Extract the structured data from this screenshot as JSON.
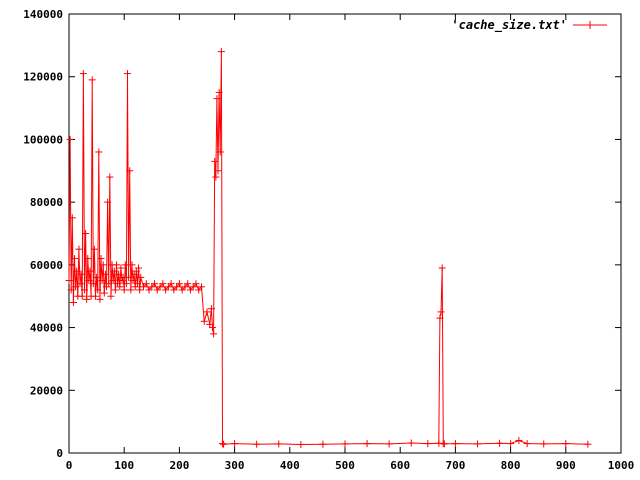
{
  "chart_data": {
    "type": "line",
    "title": "",
    "xlabel": "",
    "ylabel": "",
    "xlim": [
      0,
      1000
    ],
    "ylim": [
      0,
      140000
    ],
    "x_ticks": [
      0,
      100,
      200,
      300,
      400,
      500,
      600,
      700,
      800,
      900,
      1000
    ],
    "y_ticks": [
      0,
      20000,
      40000,
      60000,
      80000,
      100000,
      120000,
      140000
    ],
    "x_tick_labels": [
      "0",
      "100",
      "200",
      "300",
      "400",
      "500",
      "600",
      "700",
      "800",
      "900",
      "1000"
    ],
    "y_tick_labels": [
      "0",
      "20000",
      "40000",
      "60000",
      "80000",
      "100000",
      "120000",
      "140000"
    ],
    "grid": false,
    "legend_position": "top-right",
    "color": "#ff0000",
    "marker": "plus",
    "series": [
      {
        "name": "'cache_size.txt'",
        "x": [
          0,
          2,
          4,
          6,
          8,
          10,
          12,
          14,
          16,
          18,
          20,
          22,
          24,
          26,
          28,
          30,
          32,
          34,
          36,
          38,
          40,
          42,
          44,
          46,
          48,
          50,
          52,
          54,
          56,
          58,
          60,
          62,
          64,
          66,
          68,
          70,
          72,
          74,
          76,
          78,
          80,
          82,
          84,
          86,
          88,
          90,
          92,
          94,
          96,
          98,
          100,
          102,
          104,
          106,
          108,
          110,
          112,
          114,
          116,
          118,
          120,
          122,
          124,
          126,
          128,
          130,
          135,
          140,
          145,
          150,
          155,
          160,
          165,
          170,
          175,
          180,
          185,
          190,
          195,
          200,
          205,
          210,
          215,
          220,
          225,
          230,
          235,
          240,
          245,
          250,
          255,
          258,
          260,
          262,
          264,
          266,
          268,
          270,
          272,
          274,
          276,
          278,
          280,
          300,
          340,
          380,
          420,
          460,
          500,
          540,
          580,
          620,
          650,
          670,
          672,
          674,
          676,
          678,
          680,
          700,
          740,
          780,
          800,
          815,
          830,
          860,
          900,
          940
        ],
        "y": [
          55000,
          100000,
          52000,
          75000,
          48000,
          62000,
          53000,
          58000,
          50000,
          65000,
          54000,
          57000,
          50000,
          121000,
          52000,
          70000,
          49000,
          62000,
          55000,
          58000,
          50000,
          119000,
          54000,
          65000,
          50000,
          56000,
          52000,
          96000,
          49000,
          62000,
          55000,
          60000,
          51000,
          57000,
          53000,
          80000,
          54000,
          88000,
          50000,
          60000,
          55000,
          58000,
          52000,
          60000,
          54000,
          57000,
          53000,
          59000,
          55000,
          56000,
          52000,
          60000,
          54000,
          121000,
          56000,
          90000,
          52000,
          60000,
          55000,
          57000,
          53000,
          58000,
          54000,
          59000,
          52000,
          56000,
          53000,
          54000,
          52000,
          53000,
          54000,
          52000,
          53000,
          54000,
          52000,
          53000,
          54000,
          52000,
          53000,
          54000,
          52000,
          53000,
          54000,
          52000,
          53000,
          54000,
          52000,
          53000,
          42000,
          45000,
          41000,
          46000,
          40000,
          38000,
          93000,
          88000,
          113000,
          90000,
          115000,
          96000,
          128000,
          3000,
          2800,
          3000,
          2800,
          2900,
          2700,
          2800,
          2900,
          3000,
          2900,
          3200,
          3000,
          3100,
          43000,
          45000,
          59000,
          3000,
          2900,
          3000,
          2900,
          3100,
          3000,
          4000,
          3000,
          2900,
          3000,
          2800
        ]
      }
    ]
  }
}
